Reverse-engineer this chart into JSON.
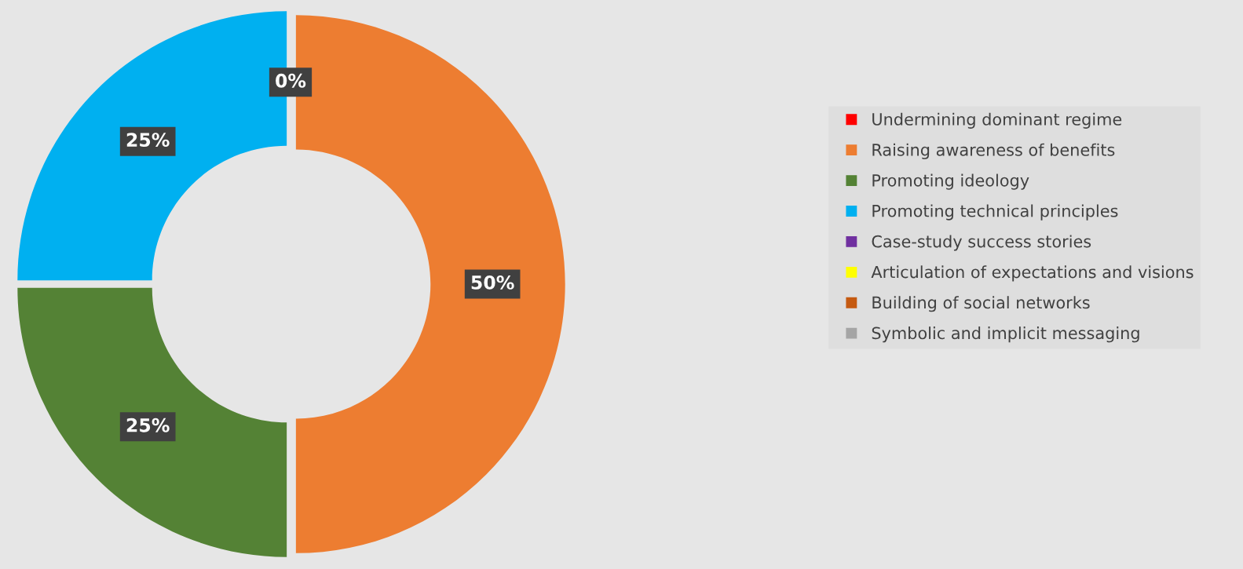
{
  "chart_data": {
    "type": "donut",
    "categories": [
      "Undermining dominant regime",
      "Raising awareness of benefits",
      "Promoting ideology",
      "Promoting technical principles",
      "Case-study success stories",
      "Articulation of expectations and visions",
      "Building of social networks",
      "Symbolic and implicit messaging"
    ],
    "values": [
      0,
      50,
      25,
      25,
      0,
      0,
      0,
      0
    ],
    "colors": [
      "#ff0000",
      "#ed7d31",
      "#548235",
      "#00b0f0",
      "#7030a0",
      "#ffff00",
      "#c55a11",
      "#a5a5a5"
    ],
    "value_labels": [
      "0%",
      "50%",
      "25%",
      "25%",
      null,
      null,
      null,
      null
    ],
    "legend": "right"
  }
}
